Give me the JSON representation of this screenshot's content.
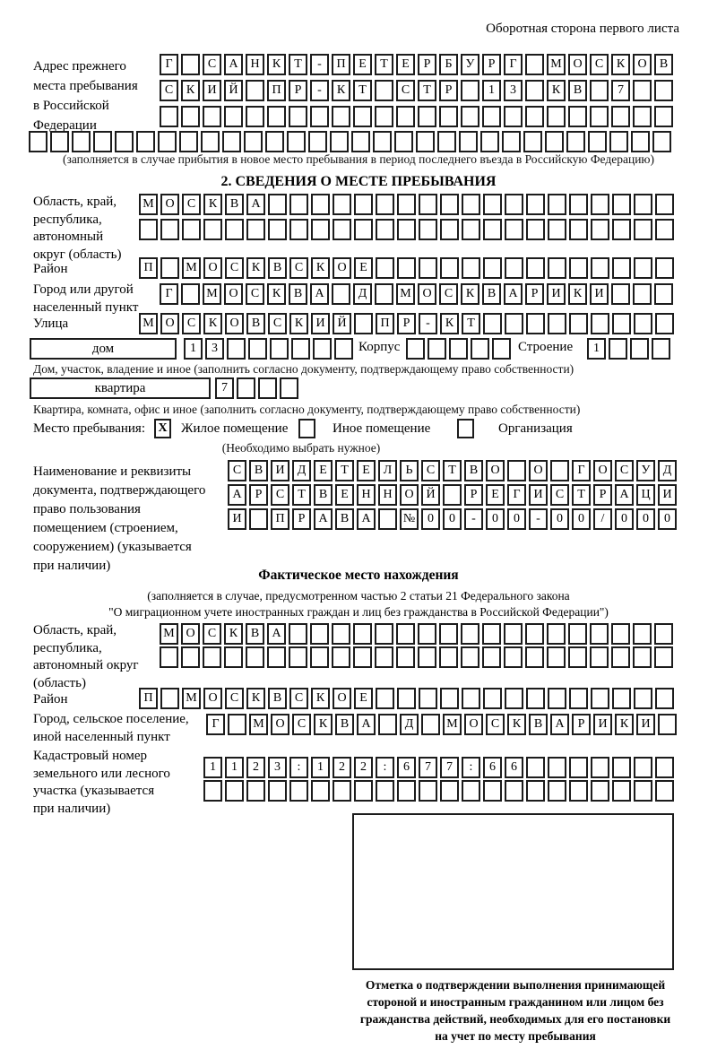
{
  "page": {
    "back_note": "Оборотная сторона первого листа"
  },
  "prev_address": {
    "label": "Адрес прежнего\nместа пребывания\nв Российской\nФедерации",
    "row1": {
      "len": 24,
      "text": "Г САНКТ-ПЕТЕРБУРГ МОСКОВ"
    },
    "row2": {
      "len": 24,
      "text": "СКИЙ ПР-КТ СТР 13 КВ 7"
    },
    "row3": {
      "len": 24,
      "text": ""
    },
    "row4": {
      "len": 30,
      "text": ""
    },
    "caption": "(заполняется в случае прибытия в новое место пребывания в период последнего въезда в Российскую Федерацию)"
  },
  "section2": {
    "title": "2. СВЕДЕНИЯ О МЕСТЕ ПРЕБЫВАНИЯ",
    "region": {
      "label": "Область, край,\nреспублика,\nавтономный\nокруг (область)",
      "row1": {
        "len": 25,
        "text": "МОСКВА"
      },
      "row2": {
        "len": 25,
        "text": ""
      }
    },
    "district": {
      "label": "Район",
      "row": {
        "len": 25,
        "text": "П МОСКВСКОЕ"
      }
    },
    "city": {
      "label": "Город или другой\nнаселенный пункт",
      "row": {
        "len": 24,
        "text": "Г МОСКВА Д МОСКВАРИКИ"
      }
    },
    "street": {
      "label": "Улица",
      "row": {
        "len": 25,
        "text": "МОСКОВСКИЙ ПР-КТ"
      }
    },
    "house": {
      "box_label": "дом",
      "cells": {
        "len": 8,
        "text": "13"
      },
      "korpus_label": "Корпус",
      "korpus_cells": {
        "len": 5,
        "text": ""
      },
      "stroenie_label": "Строение",
      "stroenie_cells": {
        "len": 4,
        "text": "1"
      }
    },
    "house_caption": "Дом, участок, владение и иное (заполнить согласно документу, подтверждающему право собственности)",
    "apartment": {
      "box_label": "квартира",
      "cells": {
        "len": 4,
        "text": "7"
      }
    },
    "apartment_caption": "Квартира, комната, офис и иное (заполнить согласно документу, подтверждающему право собственности)",
    "stay_type": {
      "label": "Место пребывания:",
      "options": [
        {
          "mark": "X",
          "label": "Жилое помещение"
        },
        {
          "mark": "",
          "label": "Иное помещение"
        },
        {
          "mark": "",
          "label": "Организация"
        }
      ],
      "note": "(Необходимо выбрать нужное)"
    },
    "usage_doc": {
      "label": "Наименование и реквизиты\nдокумента, подтверждающего\nправо пользования\nпомещением (строением,\nсооружением) (указывается\nпри наличии)",
      "row1": {
        "len": 21,
        "text": "СВИДЕТЕЛЬСТВО О ГОСУД"
      },
      "row2": {
        "len": 21,
        "text": "АРСТВЕННОЙ РЕГИСТРАЦИ"
      },
      "row3": {
        "len": 21,
        "text": "И ПРАВА №00-00-00/000"
      }
    }
  },
  "actual_location": {
    "title": "Фактическое место нахождения",
    "caption": "(заполняется в случае, предусмотренном частью 2 статьи 21 Федерального закона\n\"О миграционном учете иностранных граждан и лиц без гражданства в Российской Федерации\")",
    "region": {
      "label": "Область, край,\nреспублика,\nавтономный округ\n(область)",
      "row1": {
        "len": 24,
        "text": "МОСКВА"
      },
      "row2": {
        "len": 24,
        "text": ""
      }
    },
    "district": {
      "label": "Район",
      "row": {
        "len": 25,
        "text": "П МОСКВСКОЕ"
      }
    },
    "city": {
      "label": "Город, сельское поселение,\nиной населенный пункт",
      "row": {
        "len": 22,
        "text": "Г МОСКВА Д МОСКВАРИКИ"
      }
    },
    "cadastral": {
      "label": "Кадастровый номер\nземельного или лесного\nучастка (указывается\nпри наличии)",
      "row1": {
        "len": 22,
        "text": "1123:122:677:66"
      },
      "row2": {
        "len": 22,
        "text": ""
      }
    },
    "stamp_caption": "Отметка о подтверждении выполнения принимающей\nстороной и иностранным гражданином или лицом без\nгражданства действий, необходимых для его постановки\nна учет по месту пребывания"
  }
}
